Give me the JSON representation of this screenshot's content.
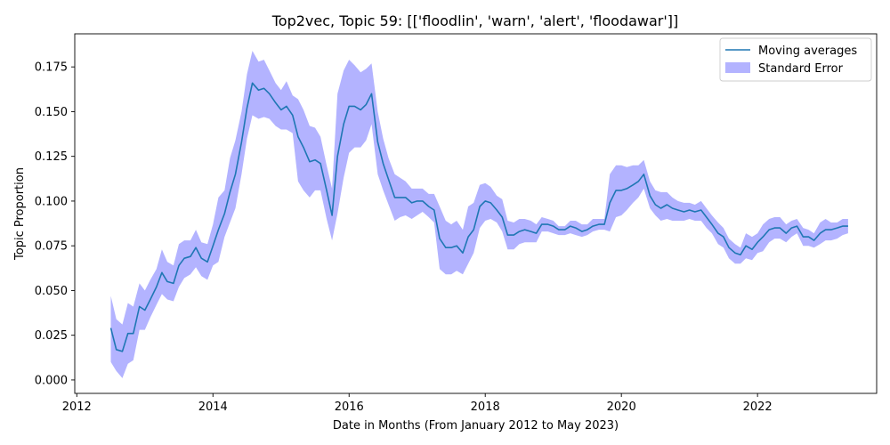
{
  "chart_data": {
    "type": "line",
    "title": "Top2vec, Topic 59: [['floodlin', 'warn', 'alert', 'floodawar']]",
    "xlabel": "Date in Months (From January 2012 to May 2023)",
    "ylabel": "Topic Proportion",
    "xlim": [
      2011.97,
      2023.75
    ],
    "ylim": [
      -0.0075,
      0.1935
    ],
    "x_ticks": [
      2012,
      2014,
      2016,
      2018,
      2020,
      2022
    ],
    "x_tick_labels": [
      "2012",
      "2014",
      "2016",
      "2018",
      "2020",
      "2022"
    ],
    "y_ticks": [
      0.0,
      0.025,
      0.05,
      0.075,
      0.1,
      0.125,
      0.15,
      0.175
    ],
    "y_tick_labels": [
      "0.000",
      "0.025",
      "0.050",
      "0.075",
      "0.100",
      "0.125",
      "0.150",
      "0.175"
    ],
    "grid": false,
    "legend_position": "upper right",
    "series": [
      {
        "name": "Moving averages",
        "kind": "line",
        "color": "#1f77b4",
        "points": [
          [
            2012.5,
            0.029
          ],
          [
            2012.58,
            0.017
          ],
          [
            2012.67,
            0.016
          ],
          [
            2012.75,
            0.026
          ],
          [
            2012.83,
            0.026
          ],
          [
            2012.92,
            0.041
          ],
          [
            2013.0,
            0.039
          ],
          [
            2013.08,
            0.045
          ],
          [
            2013.17,
            0.052
          ],
          [
            2013.25,
            0.06
          ],
          [
            2013.33,
            0.055
          ],
          [
            2013.42,
            0.054
          ],
          [
            2013.5,
            0.064
          ],
          [
            2013.58,
            0.068
          ],
          [
            2013.67,
            0.069
          ],
          [
            2013.75,
            0.074
          ],
          [
            2013.83,
            0.068
          ],
          [
            2013.92,
            0.066
          ],
          [
            2014.0,
            0.075
          ],
          [
            2014.08,
            0.084
          ],
          [
            2014.17,
            0.093
          ],
          [
            2014.25,
            0.105
          ],
          [
            2014.33,
            0.115
          ],
          [
            2014.42,
            0.133
          ],
          [
            2014.5,
            0.152
          ],
          [
            2014.58,
            0.166
          ],
          [
            2014.67,
            0.162
          ],
          [
            2014.75,
            0.163
          ],
          [
            2014.83,
            0.16
          ],
          [
            2014.92,
            0.155
          ],
          [
            2015.0,
            0.151
          ],
          [
            2015.08,
            0.153
          ],
          [
            2015.17,
            0.148
          ],
          [
            2015.25,
            0.136
          ],
          [
            2015.33,
            0.13
          ],
          [
            2015.42,
            0.122
          ],
          [
            2015.5,
            0.123
          ],
          [
            2015.58,
            0.121
          ],
          [
            2015.67,
            0.106
          ],
          [
            2015.75,
            0.092
          ],
          [
            2015.83,
            0.125
          ],
          [
            2015.92,
            0.143
          ],
          [
            2016.0,
            0.153
          ],
          [
            2016.08,
            0.153
          ],
          [
            2016.17,
            0.151
          ],
          [
            2016.25,
            0.154
          ],
          [
            2016.33,
            0.16
          ],
          [
            2016.42,
            0.133
          ],
          [
            2016.5,
            0.121
          ],
          [
            2016.58,
            0.112
          ],
          [
            2016.67,
            0.102
          ],
          [
            2016.75,
            0.102
          ],
          [
            2016.83,
            0.102
          ],
          [
            2016.92,
            0.099
          ],
          [
            2017.0,
            0.1
          ],
          [
            2017.08,
            0.1
          ],
          [
            2017.17,
            0.097
          ],
          [
            2017.25,
            0.095
          ],
          [
            2017.33,
            0.079
          ],
          [
            2017.42,
            0.074
          ],
          [
            2017.5,
            0.074
          ],
          [
            2017.58,
            0.075
          ],
          [
            2017.67,
            0.071
          ],
          [
            2017.75,
            0.08
          ],
          [
            2017.83,
            0.084
          ],
          [
            2017.92,
            0.097
          ],
          [
            2018.0,
            0.1
          ],
          [
            2018.08,
            0.099
          ],
          [
            2018.17,
            0.095
          ],
          [
            2018.25,
            0.091
          ],
          [
            2018.33,
            0.081
          ],
          [
            2018.42,
            0.081
          ],
          [
            2018.5,
            0.083
          ],
          [
            2018.58,
            0.084
          ],
          [
            2018.67,
            0.083
          ],
          [
            2018.75,
            0.082
          ],
          [
            2018.83,
            0.087
          ],
          [
            2018.92,
            0.087
          ],
          [
            2019.0,
            0.086
          ],
          [
            2019.08,
            0.084
          ],
          [
            2019.17,
            0.084
          ],
          [
            2019.25,
            0.086
          ],
          [
            2019.33,
            0.085
          ],
          [
            2019.42,
            0.083
          ],
          [
            2019.5,
            0.084
          ],
          [
            2019.58,
            0.086
          ],
          [
            2019.67,
            0.087
          ],
          [
            2019.75,
            0.087
          ],
          [
            2019.83,
            0.099
          ],
          [
            2019.92,
            0.106
          ],
          [
            2020.0,
            0.106
          ],
          [
            2020.08,
            0.107
          ],
          [
            2020.17,
            0.109
          ],
          [
            2020.25,
            0.111
          ],
          [
            2020.33,
            0.115
          ],
          [
            2020.42,
            0.103
          ],
          [
            2020.5,
            0.098
          ],
          [
            2020.58,
            0.096
          ],
          [
            2020.67,
            0.098
          ],
          [
            2020.75,
            0.096
          ],
          [
            2020.83,
            0.095
          ],
          [
            2020.92,
            0.094
          ],
          [
            2021.0,
            0.095
          ],
          [
            2021.08,
            0.094
          ],
          [
            2021.17,
            0.095
          ],
          [
            2021.25,
            0.091
          ],
          [
            2021.33,
            0.087
          ],
          [
            2021.42,
            0.082
          ],
          [
            2021.5,
            0.08
          ],
          [
            2021.58,
            0.074
          ],
          [
            2021.67,
            0.071
          ],
          [
            2021.75,
            0.07
          ],
          [
            2021.83,
            0.075
          ],
          [
            2021.92,
            0.073
          ],
          [
            2022.0,
            0.077
          ],
          [
            2022.08,
            0.08
          ],
          [
            2022.17,
            0.084
          ],
          [
            2022.25,
            0.085
          ],
          [
            2022.33,
            0.085
          ],
          [
            2022.42,
            0.082
          ],
          [
            2022.5,
            0.085
          ],
          [
            2022.58,
            0.086
          ],
          [
            2022.67,
            0.08
          ],
          [
            2022.75,
            0.08
          ],
          [
            2022.83,
            0.078
          ],
          [
            2022.92,
            0.082
          ],
          [
            2023.0,
            0.084
          ],
          [
            2023.08,
            0.084
          ],
          [
            2023.17,
            0.085
          ],
          [
            2023.25,
            0.086
          ],
          [
            2023.33,
            0.086
          ]
        ]
      },
      {
        "name": "Standard Error",
        "kind": "band",
        "color": "#b3b3ff",
        "upper": [
          0.047,
          0.034,
          0.031,
          0.043,
          0.041,
          0.054,
          0.05,
          0.056,
          0.062,
          0.073,
          0.066,
          0.064,
          0.076,
          0.078,
          0.078,
          0.084,
          0.077,
          0.076,
          0.087,
          0.102,
          0.106,
          0.124,
          0.134,
          0.15,
          0.171,
          0.184,
          0.178,
          0.179,
          0.173,
          0.166,
          0.162,
          0.167,
          0.159,
          0.157,
          0.151,
          0.142,
          0.141,
          0.136,
          0.12,
          0.107,
          0.16,
          0.173,
          0.179,
          0.176,
          0.172,
          0.174,
          0.177,
          0.15,
          0.135,
          0.124,
          0.115,
          0.113,
          0.111,
          0.107,
          0.107,
          0.107,
          0.104,
          0.104,
          0.097,
          0.089,
          0.087,
          0.089,
          0.084,
          0.097,
          0.099,
          0.109,
          0.11,
          0.108,
          0.103,
          0.101,
          0.089,
          0.088,
          0.09,
          0.09,
          0.089,
          0.087,
          0.091,
          0.09,
          0.089,
          0.086,
          0.086,
          0.089,
          0.089,
          0.087,
          0.087,
          0.09,
          0.09,
          0.09,
          0.115,
          0.12,
          0.12,
          0.119,
          0.12,
          0.12,
          0.123,
          0.111,
          0.106,
          0.105,
          0.105,
          0.102,
          0.1,
          0.099,
          0.099,
          0.098,
          0.1,
          0.096,
          0.092,
          0.088,
          0.085,
          0.079,
          0.076,
          0.074,
          0.082,
          0.08,
          0.082,
          0.087,
          0.09,
          0.091,
          0.091,
          0.087,
          0.089,
          0.09,
          0.085,
          0.084,
          0.082,
          0.088,
          0.09,
          0.088,
          0.088,
          0.09,
          0.09
        ],
        "lower": [
          0.01,
          0.005,
          0.001,
          0.009,
          0.011,
          0.028,
          0.028,
          0.035,
          0.042,
          0.048,
          0.045,
          0.044,
          0.052,
          0.057,
          0.059,
          0.063,
          0.058,
          0.056,
          0.064,
          0.066,
          0.08,
          0.088,
          0.096,
          0.115,
          0.135,
          0.148,
          0.146,
          0.147,
          0.146,
          0.142,
          0.14,
          0.14,
          0.138,
          0.111,
          0.106,
          0.102,
          0.106,
          0.106,
          0.09,
          0.078,
          0.093,
          0.113,
          0.127,
          0.13,
          0.13,
          0.134,
          0.143,
          0.115,
          0.106,
          0.098,
          0.089,
          0.091,
          0.092,
          0.09,
          0.092,
          0.094,
          0.091,
          0.088,
          0.062,
          0.059,
          0.059,
          0.061,
          0.059,
          0.065,
          0.071,
          0.085,
          0.089,
          0.09,
          0.088,
          0.083,
          0.073,
          0.073,
          0.076,
          0.077,
          0.077,
          0.077,
          0.083,
          0.083,
          0.082,
          0.081,
          0.081,
          0.082,
          0.081,
          0.08,
          0.081,
          0.083,
          0.084,
          0.084,
          0.083,
          0.091,
          0.092,
          0.095,
          0.099,
          0.102,
          0.107,
          0.096,
          0.092,
          0.089,
          0.09,
          0.089,
          0.089,
          0.089,
          0.09,
          0.089,
          0.089,
          0.085,
          0.082,
          0.076,
          0.074,
          0.068,
          0.065,
          0.065,
          0.068,
          0.067,
          0.071,
          0.072,
          0.077,
          0.079,
          0.079,
          0.077,
          0.08,
          0.082,
          0.075,
          0.075,
          0.074,
          0.076,
          0.078,
          0.078,
          0.079,
          0.081,
          0.082
        ]
      }
    ]
  }
}
